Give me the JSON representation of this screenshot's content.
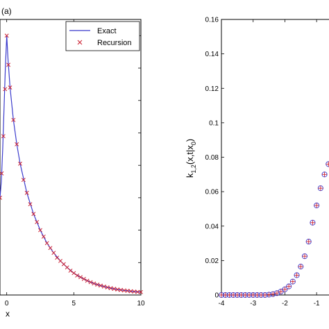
{
  "chart_data": [
    {
      "type": "line",
      "panel_label": "(a)",
      "xlabel": "x",
      "ylabel": "",
      "xlim": [
        -0.5,
        10
      ],
      "x_ticks": [
        0,
        5,
        10
      ],
      "legend": {
        "placement": "top-right",
        "entries": [
          {
            "name": "Exact",
            "marker": "line"
          },
          {
            "name": "Recursion",
            "marker": "x"
          }
        ]
      },
      "colors": {
        "exact": "#3b3bcc",
        "recursion": "#cc2233"
      },
      "series": [
        {
          "name": "Exact",
          "x": [
            -0.5,
            -0.4,
            -0.3,
            -0.2,
            -0.1,
            0,
            0.1,
            0.25,
            0.5,
            0.75,
            1,
            1.5,
            2,
            2.5,
            3,
            3.5,
            4,
            4.5,
            5,
            5.5,
            6,
            6.5,
            7,
            7.5,
            8,
            8.5,
            9,
            9.5,
            10
          ],
          "y": [
            0.06,
            0.07,
            0.09,
            0.115,
            0.14,
            0.16,
            0.145,
            0.128,
            0.108,
            0.093,
            0.081,
            0.063,
            0.05,
            0.04,
            0.032,
            0.026,
            0.021,
            0.017,
            0.0135,
            0.011,
            0.0088,
            0.0071,
            0.0058,
            0.0047,
            0.0038,
            0.0031,
            0.0026,
            0.0021,
            0.0018
          ]
        },
        {
          "name": "Recursion",
          "x": [
            -0.5,
            -0.375,
            -0.25,
            -0.125,
            0,
            0.125,
            0.25,
            0.5,
            0.75,
            1,
            1.25,
            1.5,
            1.75,
            2,
            2.25,
            2.5,
            2.75,
            3,
            3.25,
            3.5,
            3.75,
            4,
            4.25,
            4.5,
            4.75,
            5,
            5.25,
            5.5,
            5.75,
            6,
            6.25,
            6.5,
            6.75,
            7,
            7.25,
            7.5,
            7.75,
            8,
            8.25,
            8.5,
            8.75,
            9,
            9.25,
            9.5,
            9.75,
            10
          ],
          "y": [
            0.06,
            0.075,
            0.098,
            0.127,
            0.16,
            0.142,
            0.128,
            0.108,
            0.093,
            0.081,
            0.071,
            0.063,
            0.056,
            0.05,
            0.045,
            0.04,
            0.036,
            0.032,
            0.029,
            0.026,
            0.023,
            0.021,
            0.019,
            0.017,
            0.015,
            0.0135,
            0.012,
            0.011,
            0.0099,
            0.0088,
            0.0079,
            0.0071,
            0.0064,
            0.0058,
            0.0052,
            0.0047,
            0.0042,
            0.0038,
            0.0034,
            0.0031,
            0.0028,
            0.0026,
            0.0023,
            0.0021,
            0.0019,
            0.0018
          ]
        }
      ]
    },
    {
      "type": "scatter",
      "ylabel_main": "k",
      "ylabel_sub": "1,2",
      "ylabel_mid": "(x,t|x",
      "ylabel_sub2": "0",
      "ylabel_end": ")",
      "xlim": [
        -4,
        -0.5
      ],
      "ylim": [
        0,
        0.16
      ],
      "x_ticks": [
        -4,
        -3,
        -2,
        -1
      ],
      "y_ticks": [
        0,
        0.02,
        0.04,
        0.06,
        0.08,
        0.1,
        0.12,
        0.14,
        0.16
      ],
      "x_tick_labels": [
        "-4",
        "-3",
        "-2",
        "-1"
      ],
      "y_tick_labels": [
        "0",
        "0.02",
        "0.04",
        "0.06",
        "0.08",
        "0.1",
        "0.12",
        "0.14",
        "0.16"
      ],
      "colors": {
        "circle": "#3b3bcc",
        "plus": "#cc2233"
      },
      "series": [
        {
          "name": "",
          "x": [
            -4,
            -3.875,
            -3.75,
            -3.625,
            -3.5,
            -3.375,
            -3.25,
            -3.125,
            -3,
            -2.875,
            -2.75,
            -2.625,
            -2.5,
            -2.375,
            -2.25,
            -2.125,
            -2,
            -1.875,
            -1.75,
            -1.625,
            -1.5,
            -1.375,
            -1.25,
            -1.125,
            -1,
            -0.875,
            -0.75,
            -0.625
          ],
          "y": [
            0,
            0,
            0,
            0,
            0,
            0,
            0,
            0,
            0,
            0,
            0,
            0,
            0.0002,
            0.0005,
            0.0011,
            0.002,
            0.0033,
            0.005,
            0.0078,
            0.0115,
            0.0165,
            0.0225,
            0.031,
            0.042,
            0.052,
            0.062,
            0.07,
            0.076
          ]
        }
      ]
    }
  ]
}
